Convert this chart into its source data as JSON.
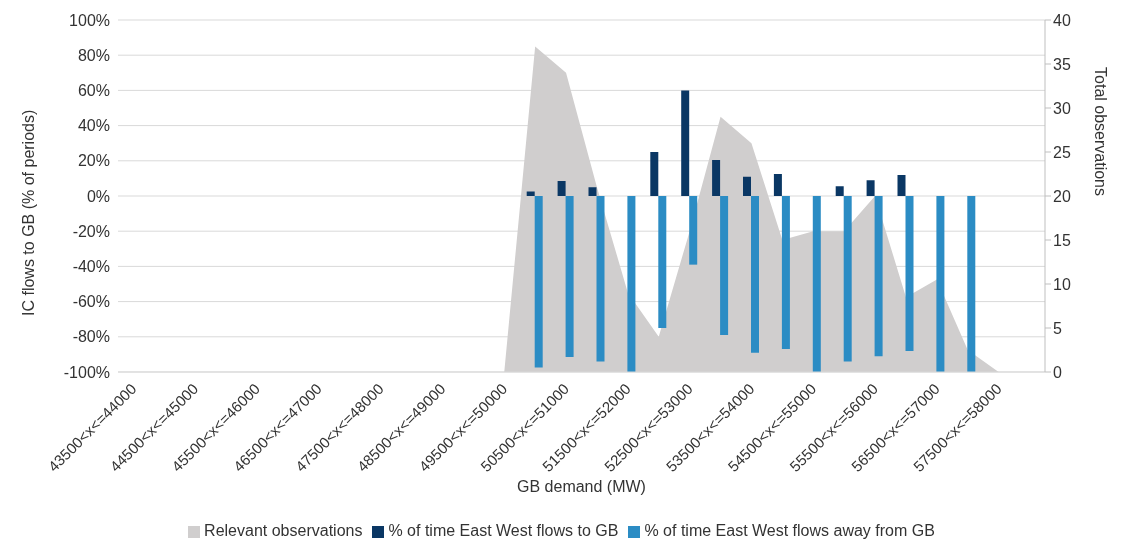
{
  "chart_data": {
    "type": "bar",
    "xlabel": "GB demand (MW)",
    "ylabel": "IC flows to GB (% of periods)",
    "y2label": "Total observations",
    "categories": [
      "43500<x<=44000",
      null,
      "44500<x<=45000",
      null,
      "45500<x<=46000",
      null,
      "46500<x<=47000",
      null,
      "47500<x<=48000",
      null,
      "48500<x<=49000",
      null,
      "49500<x<=50000",
      null,
      "50500<x<=51000",
      null,
      "51500<x<=52000",
      null,
      "52500<x<=53000",
      null,
      "53500<x<=54000",
      null,
      "54500<x<=55000",
      null,
      "55500<x<=56000",
      null,
      "56500<x<=57000",
      null,
      "57500<x<=58000",
      null
    ],
    "series": [
      {
        "name": "Relevant observations",
        "type": "area",
        "axis": "y2",
        "color": "#d0cece",
        "values": [
          null,
          null,
          null,
          null,
          null,
          null,
          null,
          null,
          null,
          null,
          null,
          null,
          0,
          37,
          34,
          21,
          9,
          4,
          16,
          29,
          26,
          15,
          16,
          16,
          20,
          8.5,
          10.5,
          2.5,
          0,
          null
        ]
      },
      {
        "name": "% of time East West flows to GB",
        "type": "bar",
        "color": "#0a3764",
        "values": [
          null,
          null,
          null,
          null,
          null,
          null,
          null,
          null,
          null,
          null,
          null,
          null,
          null,
          2.5,
          8.5,
          5,
          null,
          25,
          60,
          20.5,
          11,
          12.5,
          null,
          5.5,
          9,
          12,
          null,
          null,
          null,
          null
        ]
      },
      {
        "name": "% of time East West flows away from GB",
        "type": "bar",
        "color": "#2b8cc4",
        "values": [
          null,
          null,
          null,
          null,
          null,
          null,
          null,
          null,
          null,
          null,
          null,
          null,
          null,
          -97.5,
          -91.5,
          -94,
          -100,
          -75,
          -39,
          -79,
          -89,
          -87,
          -100,
          -94,
          -91,
          -88,
          -100,
          -100,
          null,
          null
        ]
      }
    ],
    "ylim": [
      -100,
      100
    ],
    "yticks": [
      {
        "value": -100,
        "label": "-100%"
      },
      {
        "value": -80,
        "label": "-80%"
      },
      {
        "value": -60,
        "label": "-60%"
      },
      {
        "value": -40,
        "label": "-40%"
      },
      {
        "value": -20,
        "label": "-20%"
      },
      {
        "value": 0,
        "label": "0%"
      },
      {
        "value": 20,
        "label": "20%"
      },
      {
        "value": 40,
        "label": "40%"
      },
      {
        "value": 60,
        "label": "60%"
      },
      {
        "value": 80,
        "label": "80%"
      },
      {
        "value": 100,
        "label": "100%"
      }
    ],
    "y2lim": [
      0,
      40
    ],
    "y2ticks": [
      0,
      5,
      10,
      15,
      20,
      25,
      30,
      35,
      40
    ],
    "grid": "y",
    "legend": "bottom"
  }
}
